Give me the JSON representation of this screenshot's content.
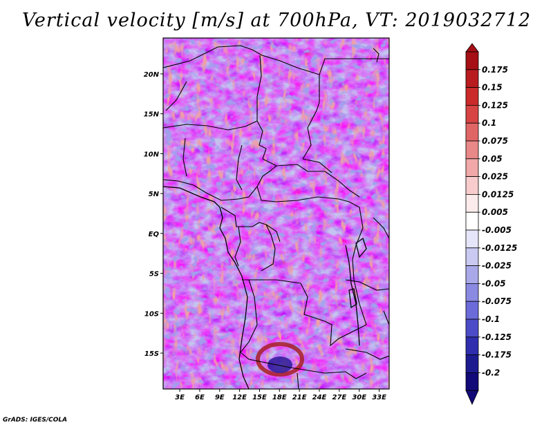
{
  "title": "Vertical velocity [m/s] at 700hPa, VT: 2019032712",
  "credit": "GrADS: IGES/COLA",
  "map": {
    "lat_labels": [
      "20N",
      "15N",
      "10N",
      "5N",
      "EQ",
      "5S",
      "10S",
      "15S"
    ],
    "lat_values": [
      20,
      15,
      10,
      5,
      0,
      -5,
      -10,
      -15
    ],
    "lon_labels": [
      "3E",
      "6E",
      "9E",
      "12E",
      "15E",
      "18E",
      "21E",
      "24E",
      "27E",
      "30E",
      "33E"
    ],
    "lon_values": [
      3,
      6,
      9,
      12,
      15,
      18,
      21,
      24,
      27,
      30,
      33
    ],
    "lon_range": [
      0.5,
      34.5
    ],
    "lat_range": [
      -19.5,
      24.5
    ]
  },
  "colorbar": {
    "labels": [
      "0.175",
      "0.15",
      "0.125",
      "0.1",
      "0.075",
      "0.05",
      "0.025",
      "0.0125",
      "0.005",
      "-0.005",
      "-0.0125",
      "-0.025",
      "-0.05",
      "-0.075",
      "-0.1",
      "-0.125",
      "-0.175",
      "-0.2"
    ],
    "colors": [
      "#a50f15",
      "#b81c1f",
      "#cb2a2a",
      "#d84444",
      "#e06666",
      "#e88888",
      "#f0a8a8",
      "#f8cccc",
      "#fcebeb",
      "#ffffff",
      "#e6e6fa",
      "#c9c9f2",
      "#a9a9ea",
      "#8a8ae2",
      "#6b6bda",
      "#4c4cc8",
      "#2e2eae",
      "#1c1c90",
      "#120a78"
    ]
  }
}
